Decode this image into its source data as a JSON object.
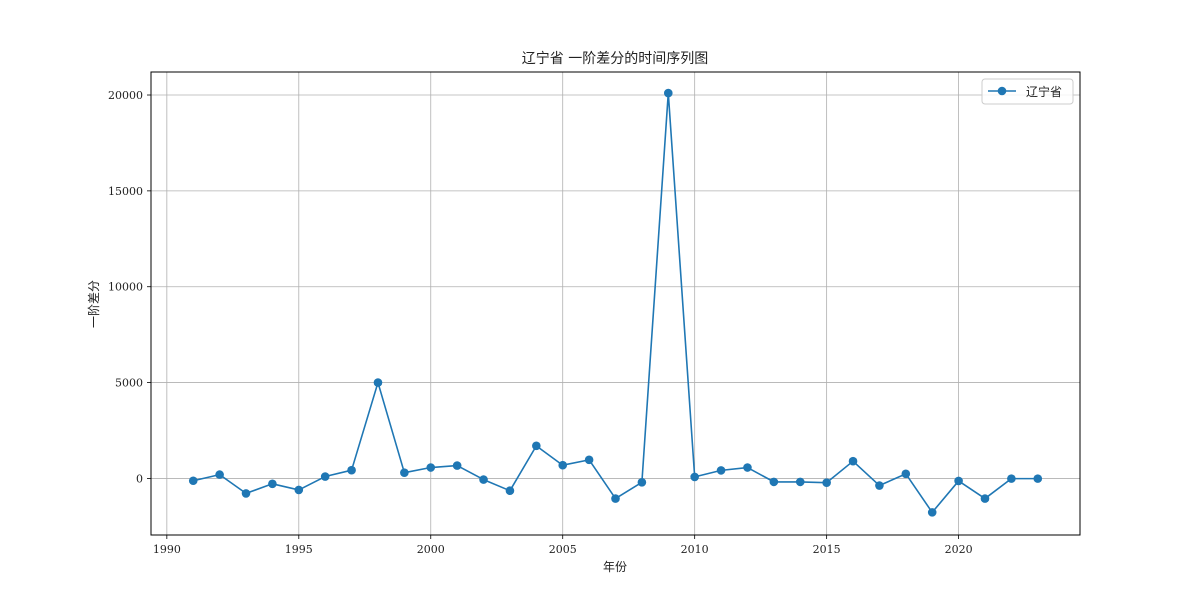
{
  "chart_data": {
    "type": "line",
    "title": "辽宁省 一阶差分的时间序列图",
    "xlabel": "年份",
    "ylabel": "一阶差分",
    "xlim": [
      1989.4,
      2024.6
    ],
    "ylim": [
      -2950,
      21200
    ],
    "xticks": [
      1990,
      1995,
      2000,
      2005,
      2010,
      2015,
      2020
    ],
    "yticks": [
      0,
      5000,
      10000,
      15000,
      20000
    ],
    "grid": true,
    "legend": "top-right",
    "series": [
      {
        "name": "辽宁省",
        "color": "#1f77b4",
        "marker": "circle",
        "x": [
          1991,
          1992,
          1993,
          1994,
          1995,
          1996,
          1997,
          1998,
          1999,
          2000,
          2001,
          2002,
          2003,
          2004,
          2005,
          2006,
          2007,
          2008,
          2009,
          2010,
          2011,
          2012,
          2013,
          2014,
          2015,
          2016,
          2017,
          2018,
          2019,
          2020,
          2021,
          2022,
          2023
        ],
        "y": [
          -120,
          200,
          -780,
          -280,
          -600,
          100,
          430,
          5000,
          300,
          570,
          670,
          -60,
          -640,
          1700,
          690,
          970,
          -1050,
          -200,
          20100,
          80,
          420,
          570,
          -180,
          -180,
          -220,
          900,
          -370,
          240,
          -1770,
          -130,
          -1050,
          -10,
          -10
        ]
      }
    ]
  }
}
